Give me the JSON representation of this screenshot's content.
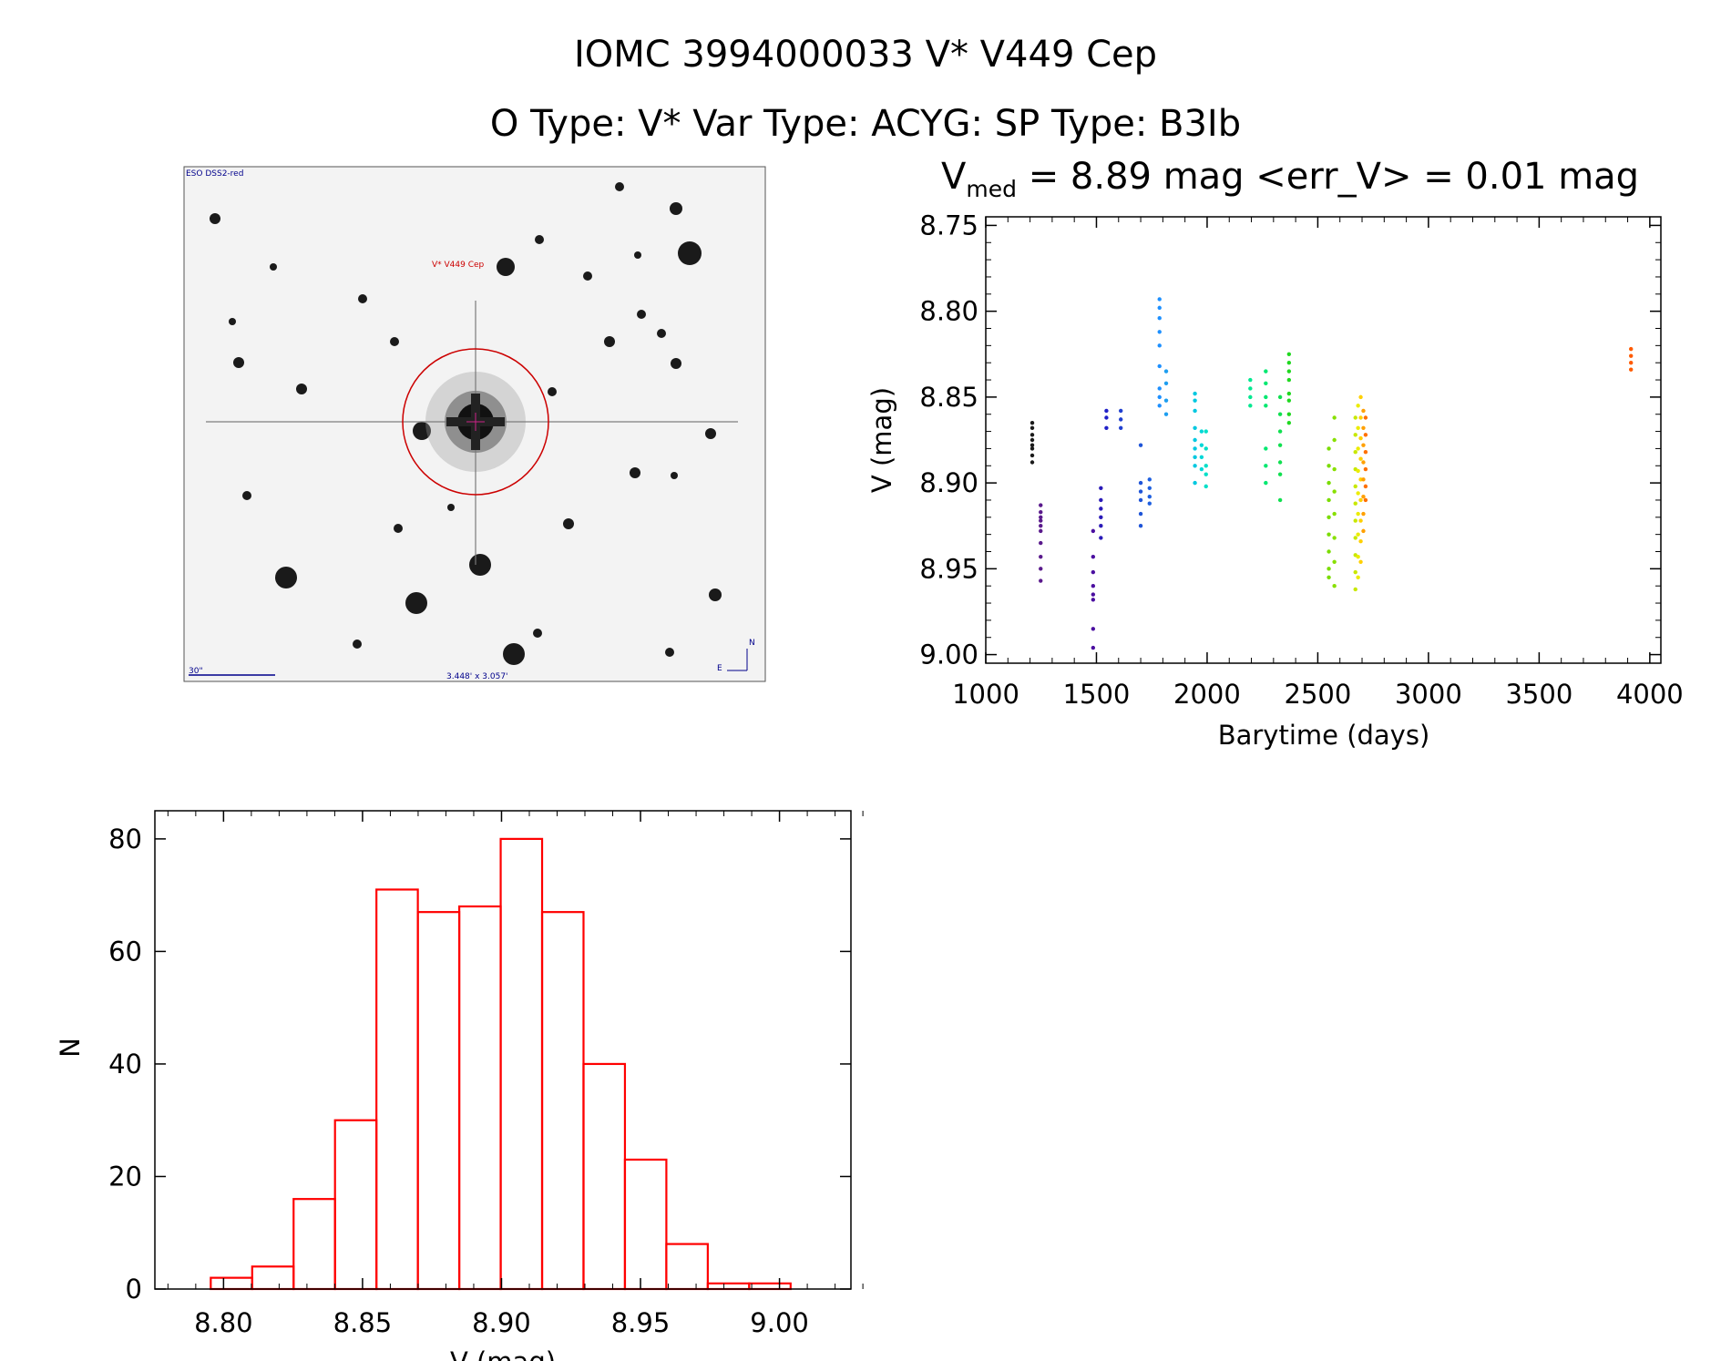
{
  "header": {
    "title": "IOMC 3994000033    V* V449 Cep",
    "subtitle": "O Type: V*   Var Type: ACYG:   SP Type: B3Ib"
  },
  "image_panel": {
    "survey_label": "ESO DSS2-red",
    "target_label": "V* V449 Cep",
    "scale_label": "30\"",
    "fov_label": "3.448' x 3.057'",
    "north_label": "N",
    "east_label": "E",
    "label_color": "#00008b",
    "target_color": "#cc0000"
  },
  "chart_data": [
    {
      "type": "scatter",
      "title_prefix": "V",
      "title_sub": "med",
      "title_rest": " = 8.89 mag <err_V> = 0.01 mag",
      "xlabel": "Barytime (days)",
      "ylabel": "V (mag)",
      "xlim": [
        1000,
        4050
      ],
      "ylim": [
        9.005,
        8.745
      ],
      "xticks": [
        "1000",
        "1500",
        "2000",
        "2500",
        "3000",
        "3500",
        "4000"
      ],
      "yticks": [
        "8.75",
        "8.80",
        "8.85",
        "8.90",
        "8.95",
        "9.00"
      ],
      "groups": [
        {
          "x": 1210,
          "y": [
            8.865,
            8.868,
            8.872,
            8.875,
            8.878,
            8.88,
            8.884,
            8.888
          ],
          "color": "#1a1a1a"
        },
        {
          "x": 1248,
          "y": [
            8.913,
            8.917,
            8.92,
            8.922,
            8.925,
            8.928,
            8.935,
            8.943,
            8.95,
            8.957
          ],
          "color": "#5a1a8c"
        },
        {
          "x": 1485,
          "y": [
            8.928,
            8.943,
            8.952,
            8.96,
            8.965,
            8.968,
            8.985,
            8.996
          ],
          "color": "#4b0fa0"
        },
        {
          "x": 1520,
          "y": [
            8.903,
            8.91,
            8.915,
            8.92,
            8.925,
            8.932
          ],
          "color": "#2a1ab8"
        },
        {
          "x": 1545,
          "y": [
            8.858,
            8.862,
            8.868
          ],
          "color": "#2020c8"
        },
        {
          "x": 1610,
          "y": [
            8.858,
            8.863,
            8.868
          ],
          "color": "#2040d0"
        },
        {
          "x": 1700,
          "y": [
            8.878,
            8.9,
            8.905,
            8.91,
            8.918,
            8.925
          ],
          "color": "#1f55d8"
        },
        {
          "x": 1740,
          "y": [
            8.898,
            8.903,
            8.908,
            8.912
          ],
          "color": "#1f60e0"
        },
        {
          "x": 1785,
          "y": [
            8.793,
            8.798,
            8.804,
            8.812,
            8.82,
            8.832,
            8.845,
            8.85,
            8.855
          ],
          "color": "#1e90ff"
        },
        {
          "x": 1815,
          "y": [
            8.835,
            8.842,
            8.852,
            8.86
          ],
          "color": "#1e9ef0"
        },
        {
          "x": 1945,
          "y": [
            8.848,
            8.852,
            8.858,
            8.868,
            8.875,
            8.88,
            8.885,
            8.89,
            8.9
          ],
          "color": "#00c8e0"
        },
        {
          "x": 1975,
          "y": [
            8.87,
            8.878,
            8.885,
            8.892
          ],
          "color": "#00d8d8"
        },
        {
          "x": 1995,
          "y": [
            8.87,
            8.88,
            8.89,
            8.895,
            8.902
          ],
          "color": "#00e0c8"
        },
        {
          "x": 2195,
          "y": [
            8.84,
            8.845,
            8.85,
            8.855
          ],
          "color": "#00e890"
        },
        {
          "x": 2265,
          "y": [
            8.835,
            8.842,
            8.85,
            8.855,
            8.88,
            8.89,
            8.9
          ],
          "color": "#00e870"
        },
        {
          "x": 2330,
          "y": [
            8.85,
            8.86,
            8.87,
            8.878,
            8.888,
            8.895,
            8.91
          ],
          "color": "#10e050"
        },
        {
          "x": 2370,
          "y": [
            8.825,
            8.83,
            8.835,
            8.84,
            8.848,
            8.852,
            8.86,
            8.865
          ],
          "color": "#20d820"
        },
        {
          "x": 2550,
          "y": [
            8.88,
            8.89,
            8.9,
            8.91,
            8.92,
            8.93,
            8.94,
            8.95,
            8.955
          ],
          "color": "#7adc00"
        },
        {
          "x": 2575,
          "y": [
            8.862,
            8.875,
            8.892,
            8.905,
            8.918,
            8.932,
            8.946,
            8.96
          ],
          "color": "#88e000"
        },
        {
          "x": 2670,
          "y": [
            8.862,
            8.872,
            8.882,
            8.892,
            8.902,
            8.912,
            8.922,
            8.932,
            8.942,
            8.952,
            8.962
          ],
          "color": "#c8e800"
        },
        {
          "x": 2682,
          "y": [
            8.855,
            8.868,
            8.88,
            8.893,
            8.906,
            8.918,
            8.93,
            8.943,
            8.955
          ],
          "color": "#ecec00"
        },
        {
          "x": 2694,
          "y": [
            8.85,
            8.862,
            8.874,
            8.886,
            8.898,
            8.91,
            8.922,
            8.934,
            8.946
          ],
          "color": "#ffd000"
        },
        {
          "x": 2706,
          "y": [
            8.858,
            8.868,
            8.878,
            8.888,
            8.898,
            8.908,
            8.918,
            8.928
          ],
          "color": "#ffa000"
        },
        {
          "x": 2716,
          "y": [
            8.862,
            8.872,
            8.882,
            8.892,
            8.902,
            8.91
          ],
          "color": "#ff7000"
        },
        {
          "x": 3915,
          "y": [
            8.822,
            8.826,
            8.83,
            8.834
          ],
          "color": "#ff5a00"
        }
      ]
    },
    {
      "type": "bar",
      "xlabel": "V (mag)",
      "ylabel": "N",
      "xlim": [
        8.7753,
        9.0257
      ],
      "ylim": [
        0,
        85
      ],
      "xticks": [
        "8.80",
        "8.85",
        "8.90",
        "8.95",
        "9.00"
      ],
      "yticks": [
        "0",
        "20",
        "40",
        "60",
        "80"
      ],
      "bin_start": 8.7954,
      "bin_width": 0.0149,
      "values": [
        2,
        4,
        16,
        30,
        71,
        67,
        68,
        80,
        67,
        40,
        23,
        8,
        1,
        1
      ],
      "color": "#ff0000"
    }
  ]
}
